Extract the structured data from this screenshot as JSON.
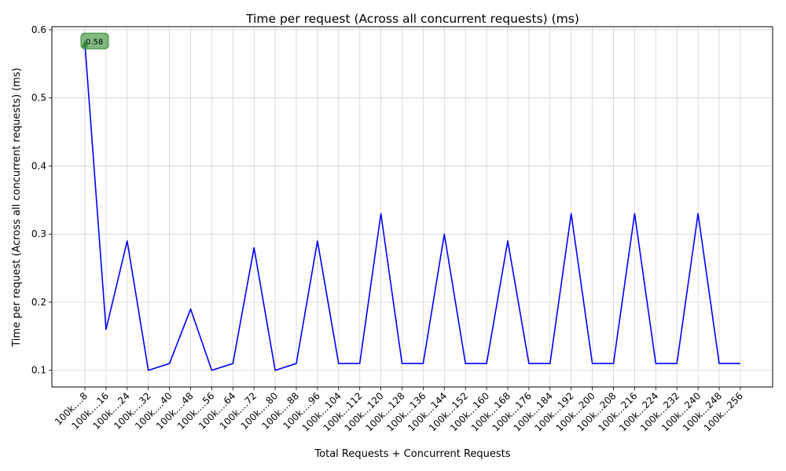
{
  "chart_data": {
    "type": "line",
    "title": "Time per request (Across all concurrent requests) (ms)",
    "xlabel": "Total Requests + Concurrent Requests",
    "ylabel": "Time per request (Across all concurrent requests) (ms)",
    "categories": [
      "100k....8",
      "100k....16",
      "100k....24",
      "100k....32",
      "100k....40",
      "100k....48",
      "100k....56",
      "100k....64",
      "100k....72",
      "100k....80",
      "100k....88",
      "100k....96",
      "100k...104",
      "100k...112",
      "100k...120",
      "100k...128",
      "100k...136",
      "100k...144",
      "100k...152",
      "100k...160",
      "100k...168",
      "100k...176",
      "100k...184",
      "100k...192",
      "100k...200",
      "100k...208",
      "100k...216",
      "100k...224",
      "100k...232",
      "100k...240",
      "100k...248",
      "100k...256"
    ],
    "series": [
      {
        "values": [
          0.58,
          0.16,
          0.29,
          0.1,
          0.11,
          0.19,
          0.1,
          0.11,
          0.28,
          0.1,
          0.11,
          0.29,
          0.11,
          0.11,
          0.33,
          0.11,
          0.11,
          0.3,
          0.11,
          0.11,
          0.29,
          0.11,
          0.11,
          0.33,
          0.11,
          0.11,
          0.33,
          0.11,
          0.11,
          0.33,
          0.11,
          0.11
        ],
        "color": "#0000ff"
      }
    ],
    "yticks": [
      0.1,
      0.2,
      0.3,
      0.4,
      0.5,
      0.6
    ],
    "ylim": [
      0.0755,
      0.6045
    ],
    "grid": true,
    "annotations": [
      {
        "text": "0.58",
        "category_index": 0,
        "value": 0.58,
        "color": "#2e8b2e"
      }
    ]
  }
}
